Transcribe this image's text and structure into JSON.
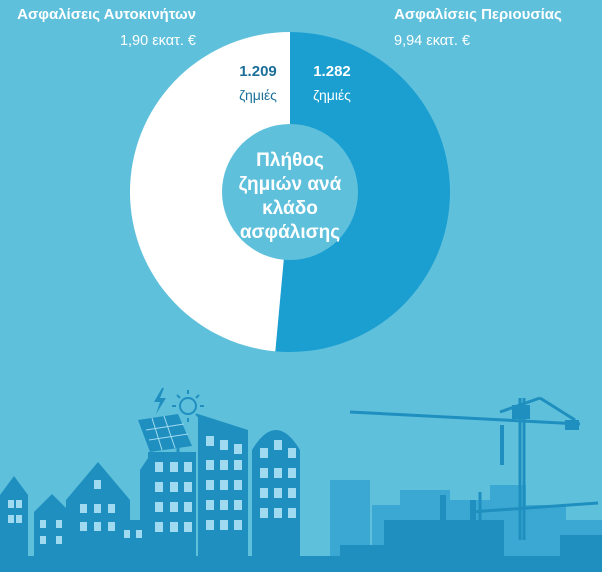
{
  "chart_data": {
    "type": "pie",
    "center_label": "Πλήθος ζημιών ανά κλάδο ασφάλισης",
    "center_lines": [
      "Πλήθος",
      "ζημιών ανά",
      "κλάδο",
      "ασφάλισης"
    ],
    "slices": [
      {
        "name": "Ασφαλίσεις Περιουσίας",
        "amount": "9,94 εκατ. €",
        "value": 1282,
        "value_label": "1.282",
        "unit_label": "ζημιές",
        "color": "#1b9fd1"
      },
      {
        "name": "Ασφαλίσεις Αυτοκινήτων",
        "amount": "1,90 εκατ. €",
        "value": 1209,
        "value_label": "1.209",
        "unit_label": "ζημιές",
        "color": "#ffffff"
      }
    ]
  },
  "colors": {
    "background": "#5fc0dc",
    "center_disc": "#5fc0dc",
    "property_slice": "#1b9fd1",
    "auto_slice": "#ffffff",
    "label_dark": "#1b6f99",
    "label_on_blue": "#ffffff",
    "skyline": "#1f8fbf",
    "skyline_far": "#3aa8d3",
    "window": "#9fdaf0"
  }
}
